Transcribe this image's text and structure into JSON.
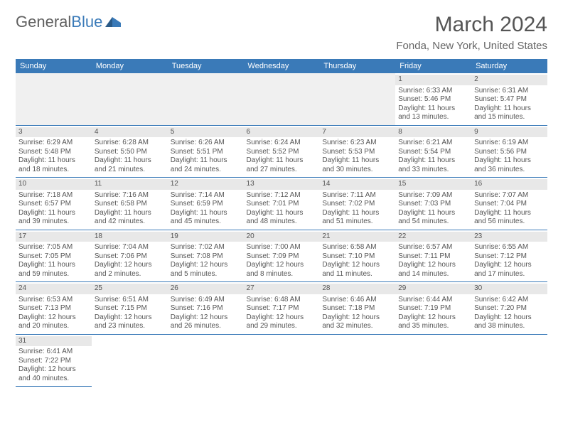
{
  "logo": {
    "part1": "General",
    "part2": "Blue"
  },
  "title": "March 2024",
  "location": "Fonda, New York, United States",
  "colors": {
    "headerBg": "#3a7ab8",
    "headerText": "#ffffff",
    "daynumBg": "#e8e8e8",
    "borderColor": "#3a7ab8",
    "textColor": "#555555"
  },
  "weekdays": [
    "Sunday",
    "Monday",
    "Tuesday",
    "Wednesday",
    "Thursday",
    "Friday",
    "Saturday"
  ],
  "weeks": [
    [
      null,
      null,
      null,
      null,
      null,
      {
        "num": "1",
        "sunrise": "Sunrise: 6:33 AM",
        "sunset": "Sunset: 5:46 PM",
        "daylight": "Daylight: 11 hours and 13 minutes."
      },
      {
        "num": "2",
        "sunrise": "Sunrise: 6:31 AM",
        "sunset": "Sunset: 5:47 PM",
        "daylight": "Daylight: 11 hours and 15 minutes."
      }
    ],
    [
      {
        "num": "3",
        "sunrise": "Sunrise: 6:29 AM",
        "sunset": "Sunset: 5:48 PM",
        "daylight": "Daylight: 11 hours and 18 minutes."
      },
      {
        "num": "4",
        "sunrise": "Sunrise: 6:28 AM",
        "sunset": "Sunset: 5:50 PM",
        "daylight": "Daylight: 11 hours and 21 minutes."
      },
      {
        "num": "5",
        "sunrise": "Sunrise: 6:26 AM",
        "sunset": "Sunset: 5:51 PM",
        "daylight": "Daylight: 11 hours and 24 minutes."
      },
      {
        "num": "6",
        "sunrise": "Sunrise: 6:24 AM",
        "sunset": "Sunset: 5:52 PM",
        "daylight": "Daylight: 11 hours and 27 minutes."
      },
      {
        "num": "7",
        "sunrise": "Sunrise: 6:23 AM",
        "sunset": "Sunset: 5:53 PM",
        "daylight": "Daylight: 11 hours and 30 minutes."
      },
      {
        "num": "8",
        "sunrise": "Sunrise: 6:21 AM",
        "sunset": "Sunset: 5:54 PM",
        "daylight": "Daylight: 11 hours and 33 minutes."
      },
      {
        "num": "9",
        "sunrise": "Sunrise: 6:19 AM",
        "sunset": "Sunset: 5:56 PM",
        "daylight": "Daylight: 11 hours and 36 minutes."
      }
    ],
    [
      {
        "num": "10",
        "sunrise": "Sunrise: 7:18 AM",
        "sunset": "Sunset: 6:57 PM",
        "daylight": "Daylight: 11 hours and 39 minutes."
      },
      {
        "num": "11",
        "sunrise": "Sunrise: 7:16 AM",
        "sunset": "Sunset: 6:58 PM",
        "daylight": "Daylight: 11 hours and 42 minutes."
      },
      {
        "num": "12",
        "sunrise": "Sunrise: 7:14 AM",
        "sunset": "Sunset: 6:59 PM",
        "daylight": "Daylight: 11 hours and 45 minutes."
      },
      {
        "num": "13",
        "sunrise": "Sunrise: 7:12 AM",
        "sunset": "Sunset: 7:01 PM",
        "daylight": "Daylight: 11 hours and 48 minutes."
      },
      {
        "num": "14",
        "sunrise": "Sunrise: 7:11 AM",
        "sunset": "Sunset: 7:02 PM",
        "daylight": "Daylight: 11 hours and 51 minutes."
      },
      {
        "num": "15",
        "sunrise": "Sunrise: 7:09 AM",
        "sunset": "Sunset: 7:03 PM",
        "daylight": "Daylight: 11 hours and 54 minutes."
      },
      {
        "num": "16",
        "sunrise": "Sunrise: 7:07 AM",
        "sunset": "Sunset: 7:04 PM",
        "daylight": "Daylight: 11 hours and 56 minutes."
      }
    ],
    [
      {
        "num": "17",
        "sunrise": "Sunrise: 7:05 AM",
        "sunset": "Sunset: 7:05 PM",
        "daylight": "Daylight: 11 hours and 59 minutes."
      },
      {
        "num": "18",
        "sunrise": "Sunrise: 7:04 AM",
        "sunset": "Sunset: 7:06 PM",
        "daylight": "Daylight: 12 hours and 2 minutes."
      },
      {
        "num": "19",
        "sunrise": "Sunrise: 7:02 AM",
        "sunset": "Sunset: 7:08 PM",
        "daylight": "Daylight: 12 hours and 5 minutes."
      },
      {
        "num": "20",
        "sunrise": "Sunrise: 7:00 AM",
        "sunset": "Sunset: 7:09 PM",
        "daylight": "Daylight: 12 hours and 8 minutes."
      },
      {
        "num": "21",
        "sunrise": "Sunrise: 6:58 AM",
        "sunset": "Sunset: 7:10 PM",
        "daylight": "Daylight: 12 hours and 11 minutes."
      },
      {
        "num": "22",
        "sunrise": "Sunrise: 6:57 AM",
        "sunset": "Sunset: 7:11 PM",
        "daylight": "Daylight: 12 hours and 14 minutes."
      },
      {
        "num": "23",
        "sunrise": "Sunrise: 6:55 AM",
        "sunset": "Sunset: 7:12 PM",
        "daylight": "Daylight: 12 hours and 17 minutes."
      }
    ],
    [
      {
        "num": "24",
        "sunrise": "Sunrise: 6:53 AM",
        "sunset": "Sunset: 7:13 PM",
        "daylight": "Daylight: 12 hours and 20 minutes."
      },
      {
        "num": "25",
        "sunrise": "Sunrise: 6:51 AM",
        "sunset": "Sunset: 7:15 PM",
        "daylight": "Daylight: 12 hours and 23 minutes."
      },
      {
        "num": "26",
        "sunrise": "Sunrise: 6:49 AM",
        "sunset": "Sunset: 7:16 PM",
        "daylight": "Daylight: 12 hours and 26 minutes."
      },
      {
        "num": "27",
        "sunrise": "Sunrise: 6:48 AM",
        "sunset": "Sunset: 7:17 PM",
        "daylight": "Daylight: 12 hours and 29 minutes."
      },
      {
        "num": "28",
        "sunrise": "Sunrise: 6:46 AM",
        "sunset": "Sunset: 7:18 PM",
        "daylight": "Daylight: 12 hours and 32 minutes."
      },
      {
        "num": "29",
        "sunrise": "Sunrise: 6:44 AM",
        "sunset": "Sunset: 7:19 PM",
        "daylight": "Daylight: 12 hours and 35 minutes."
      },
      {
        "num": "30",
        "sunrise": "Sunrise: 6:42 AM",
        "sunset": "Sunset: 7:20 PM",
        "daylight": "Daylight: 12 hours and 38 minutes."
      }
    ],
    [
      {
        "num": "31",
        "sunrise": "Sunrise: 6:41 AM",
        "sunset": "Sunset: 7:22 PM",
        "daylight": "Daylight: 12 hours and 40 minutes."
      },
      null,
      null,
      null,
      null,
      null,
      null
    ]
  ]
}
